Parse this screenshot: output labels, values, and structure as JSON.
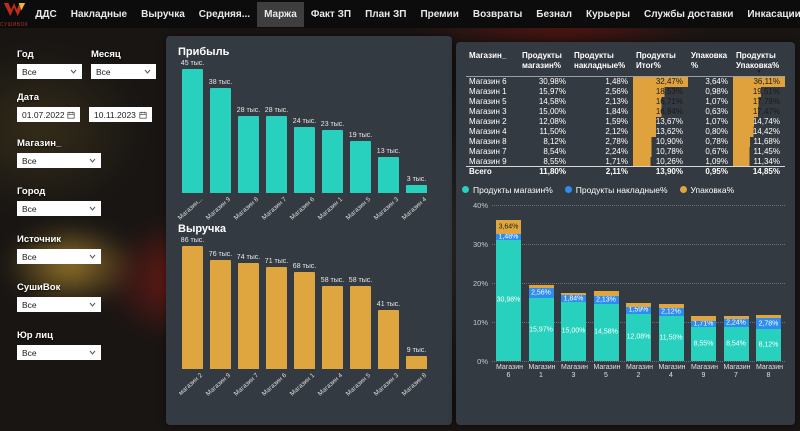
{
  "nav": {
    "logo_text": "СУШИВОК",
    "active": "Маржа",
    "items": [
      "ДДС",
      "Накладные",
      "Выручка",
      "Средняя...",
      "Маржа",
      "Факт ЗП",
      "План ЗП",
      "Премии",
      "Возвраты",
      "Безнал",
      "Курьеры",
      "Службы доставки",
      "Инкасации"
    ]
  },
  "filters": {
    "year": {
      "label": "Год",
      "value": "Все"
    },
    "month": {
      "label": "Месяц",
      "value": "Все"
    },
    "date": {
      "label": "Дата",
      "from": "01.07.2022",
      "to": "10.11.2023"
    },
    "store": {
      "label": "Магазин_",
      "value": "Все"
    },
    "city": {
      "label": "Город",
      "value": "Все"
    },
    "source": {
      "label": "Источник",
      "value": "Все"
    },
    "sushivok": {
      "label": "СушиВок",
      "value": "Все"
    },
    "entity": {
      "label": "Юр лиц",
      "value": "Все"
    }
  },
  "colors": {
    "teal": "#27d1bd",
    "orange": "#dfa63f",
    "blue": "#2e8cf0",
    "table_bar": "#e0a23c"
  },
  "chart_data": [
    {
      "id": "profit",
      "type": "bar",
      "title": "Прибыль",
      "unit": "тыс.",
      "categories": [
        "Магазин...",
        "Магазин 9",
        "Магазин 8",
        "Магазин 7",
        "Магазин 6",
        "Магазин 1",
        "Магазин 5",
        "Магазин 3",
        "Магазин 4"
      ],
      "values": [
        45,
        38,
        28,
        28,
        24,
        23,
        19,
        13,
        3
      ],
      "labels": [
        "45 тыс.",
        "38 тыс.",
        "28 тыс.",
        "28 тыс.",
        "24 тыс.",
        "23 тыс.",
        "19 тыс.",
        "13 тыс.",
        "3 тыс."
      ],
      "bar_color": "#27d1bd",
      "ylim": [
        0,
        45
      ],
      "grid": false
    },
    {
      "id": "revenue",
      "type": "bar",
      "title": "Выручка",
      "unit": "тыс.",
      "categories": [
        "магазин 2",
        "Магазин 9",
        "Магазин 7",
        "Магазин 6",
        "Магазин 1",
        "Магазин 4",
        "Магазин 5",
        "Магазин 3",
        "Магазин 8"
      ],
      "values": [
        86,
        76,
        74,
        71,
        68,
        58,
        58,
        41,
        9
      ],
      "labels": [
        "86 тыс.",
        "76 тыс.",
        "74 тыс.",
        "71 тыс.",
        "68 тыс.",
        "58 тыс.",
        "58 тыс.",
        "41 тыс.",
        "9 тыс."
      ],
      "bar_color": "#dfa63f",
      "ylim": [
        0,
        86
      ],
      "grid": false
    },
    {
      "id": "margin-stacked",
      "type": "bar",
      "stacked": true,
      "title": "",
      "categories": [
        "Магазин 6",
        "Магазин 1",
        "Магазин 3",
        "Магазин 5",
        "Магазин 2",
        "Магазин 4",
        "Магазин 9",
        "Магазин 7",
        "Магазин 8"
      ],
      "series": [
        {
          "name": "Продукты магазин%",
          "color": "#27d1bd",
          "values": [
            30.98,
            15.97,
            15.0,
            14.58,
            12.08,
            11.5,
            8.55,
            8.54,
            8.12
          ],
          "labels": [
            "30,98%",
            "15,97%",
            "15,00%",
            "14,58%",
            "12,08%",
            "11,50%",
            "8,55%",
            "8,54%",
            "8,12%"
          ],
          "label_color": "#ffffff"
        },
        {
          "name": "Продукты накладные%",
          "color": "#2e8cf0",
          "values": [
            1.48,
            2.56,
            1.84,
            2.13,
            1.59,
            2.12,
            1.71,
            2.24,
            2.78
          ],
          "labels": [
            "1,48%",
            "2,56%",
            "1,84%",
            "2,13%",
            "1,59%",
            "2,12%",
            "1,71%",
            "2,24%",
            "2,78%"
          ],
          "label_color": "#ffffff"
        },
        {
          "name": "Упаковка%",
          "color": "#dfa63f",
          "values": [
            3.64,
            0.98,
            0.63,
            1.07,
            1.07,
            0.8,
            1.09,
            0.67,
            0.78
          ],
          "labels": [
            "3,64%",
            "",
            "",
            "",
            "",
            "",
            "",
            "",
            ""
          ],
          "label_color": "#1c1c1c"
        }
      ],
      "ylim": [
        0,
        40
      ],
      "yticks": [
        "0%",
        "10%",
        "20%",
        "30%",
        "40%"
      ],
      "grid": true,
      "legend_position": "top"
    }
  ],
  "table": {
    "columns": [
      "Магазин_",
      "Продукты магазин%",
      "Продукты накладные%",
      "Продукты Итог%",
      "Упаковка %",
      "Продукты Упаковка%"
    ],
    "rows": [
      [
        "Магазин 6",
        "30,98%",
        "1,48%",
        "32,47%",
        "3,64%",
        "36,11%"
      ],
      [
        "Магазин 1",
        "15,97%",
        "2,56%",
        "18,53%",
        "0,98%",
        "19,51%"
      ],
      [
        "Магазин 5",
        "14,58%",
        "2,13%",
        "16,71%",
        "1,07%",
        "17,78%"
      ],
      [
        "Магазин 3",
        "15,00%",
        "1,84%",
        "16,84%",
        "0,63%",
        "17,47%"
      ],
      [
        "Магазин 2",
        "12,08%",
        "1,59%",
        "13,67%",
        "1,07%",
        "14,74%"
      ],
      [
        "Магазин 4",
        "11,50%",
        "2,12%",
        "13,62%",
        "0,80%",
        "14,42%"
      ],
      [
        "Магазин 8",
        "8,12%",
        "2,78%",
        "10,90%",
        "0,78%",
        "11,68%"
      ],
      [
        "Магазин 7",
        "8,54%",
        "2,24%",
        "10,78%",
        "0,67%",
        "11,45%"
      ],
      [
        "Магазин 9",
        "8,55%",
        "1,71%",
        "10,26%",
        "1,09%",
        "11,34%"
      ]
    ],
    "total": [
      "Всего",
      "11,80%",
      "2,11%",
      "13,90%",
      "0,95%",
      "14,85%"
    ],
    "bar_columns": [
      3,
      5
    ]
  }
}
